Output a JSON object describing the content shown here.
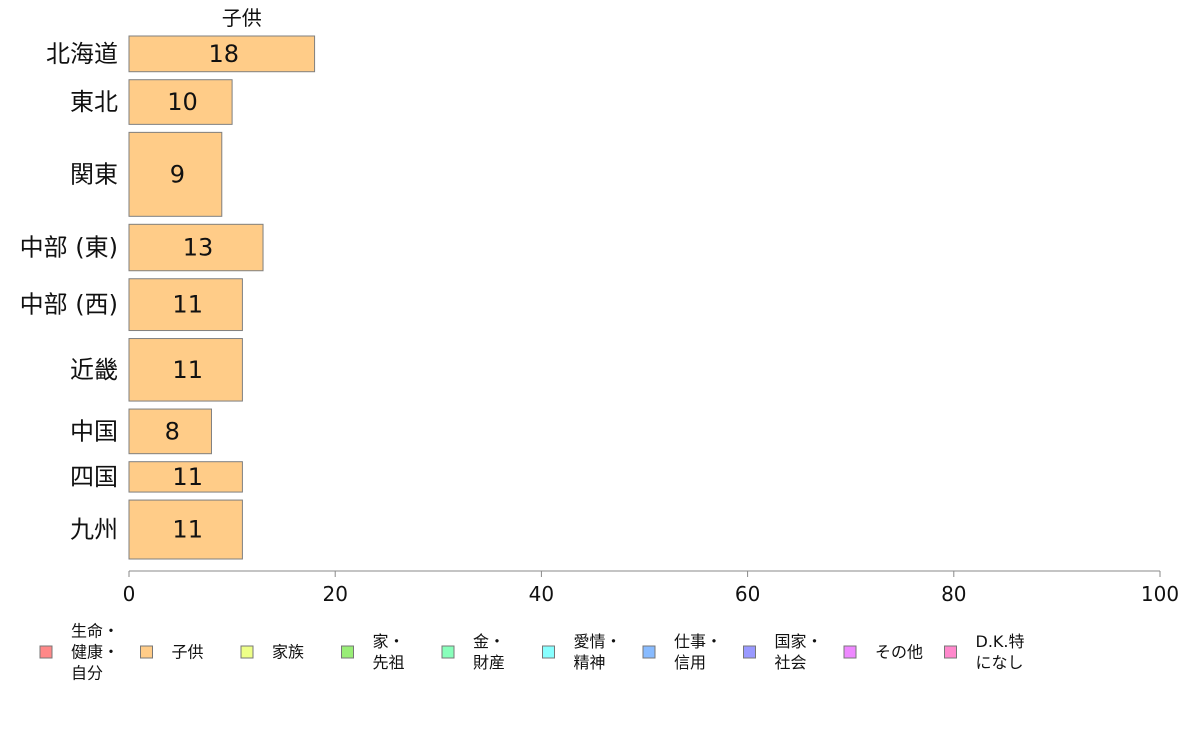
{
  "chart_data": {
    "type": "bar",
    "orientation": "horizontal",
    "title": "",
    "panel_title": "子供",
    "categories": [
      "北海道",
      "東北",
      "関東",
      "中部 (東)",
      "中部 (西)",
      "近畿",
      "中国",
      "四国",
      "九州"
    ],
    "values": [
      18,
      10,
      9,
      13,
      11,
      11,
      8,
      11,
      11
    ],
    "value_labels": [
      "18",
      "10",
      "9",
      "13",
      "11",
      "11",
      "8",
      "11",
      "11"
    ],
    "relative_bar_thickness": [
      1.0,
      1.25,
      2.35,
      1.3,
      1.45,
      1.75,
      1.25,
      0.85,
      1.65
    ],
    "xlim": [
      0,
      100
    ],
    "xticks": [
      0,
      20,
      40,
      60,
      80,
      100
    ],
    "xlabel": "",
    "ylabel": "",
    "grid": false,
    "bar_color": "#FFCC88",
    "bar_edge_color": "#7f7f7f",
    "legend_position": "bottom",
    "legend": [
      {
        "lines": [
          "生命・",
          "健康・",
          "自分"
        ],
        "color": "#FF8888"
      },
      {
        "lines": [
          "子供"
        ],
        "color": "#FFCC88"
      },
      {
        "lines": [
          "家族"
        ],
        "color": "#EEFF88"
      },
      {
        "lines": [
          "家・",
          "先祖"
        ],
        "color": "#99EE77"
      },
      {
        "lines": [
          "金・",
          "財産"
        ],
        "color": "#88FFBB"
      },
      {
        "lines": [
          "愛情・",
          "精神"
        ],
        "color": "#88FFFF"
      },
      {
        "lines": [
          "仕事・",
          "信用"
        ],
        "color": "#88BBFF"
      },
      {
        "lines": [
          "国家・",
          "社会"
        ],
        "color": "#9999FF"
      },
      {
        "lines": [
          "その他"
        ],
        "color": "#EE88FF"
      },
      {
        "lines": [
          "D.K.特",
          "になし"
        ],
        "color": "#FF88CC"
      }
    ]
  }
}
